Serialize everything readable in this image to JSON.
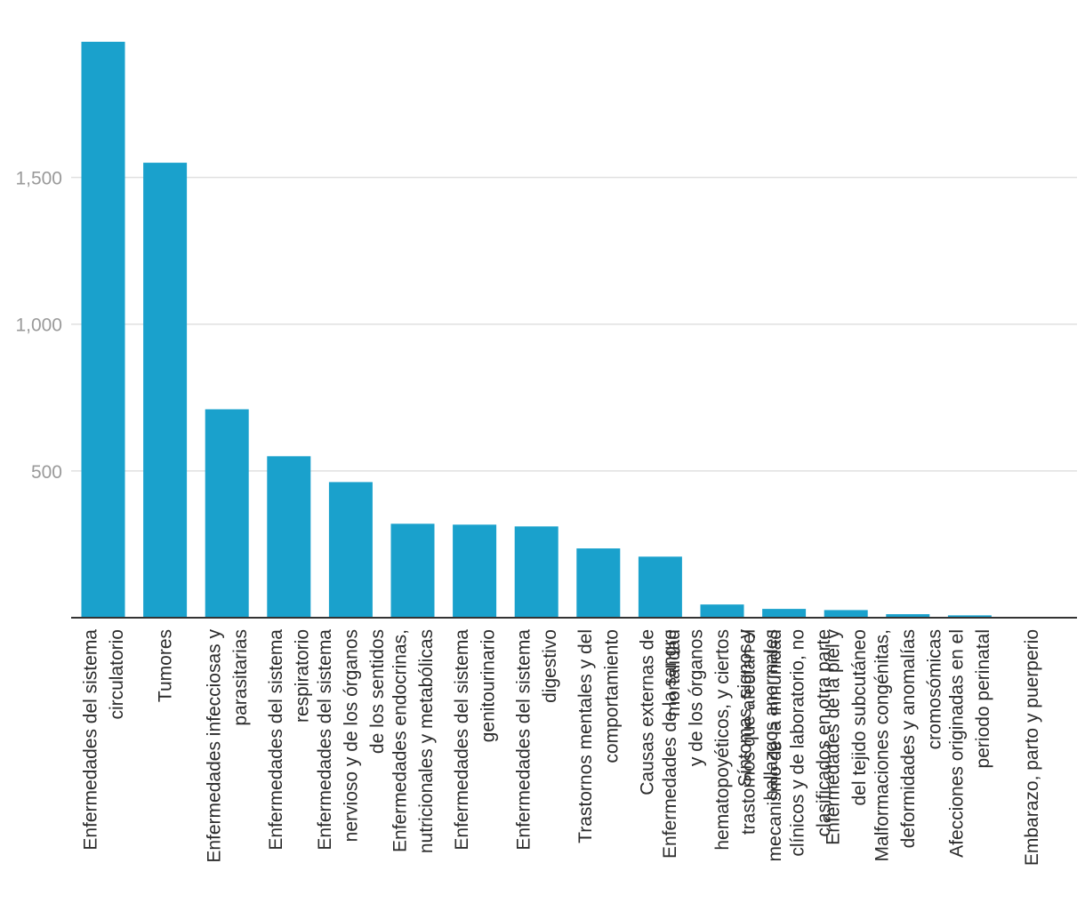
{
  "chart_data": {
    "type": "bar",
    "title": "",
    "xlabel": "",
    "ylabel": "",
    "ylim": [
      0,
      1962
    ],
    "yticks": [
      500,
      1000,
      1500
    ],
    "ytick_labels": [
      "500",
      "1,000",
      "1,500"
    ],
    "grid": true,
    "bar_color": "#1aa1cc",
    "categories": [
      [
        "Enfermedades del sistema",
        "circulatorio"
      ],
      [
        "Tumores"
      ],
      [
        "Enfermedades infecciosas y",
        "parasitarias"
      ],
      [
        "Enfermedades del sistema",
        "respiratorio"
      ],
      [
        "Enfermedades del sistema",
        "nervioso y de los órganos",
        "de los sentidos"
      ],
      [
        "Enfermedades endocrinas,",
        "nutricionales y metabólicas"
      ],
      [
        "Enfermedades del sistema",
        "genitourinario"
      ],
      [
        "Enfermedades del sistema",
        "digestivo"
      ],
      [
        "Trastornos mentales y del",
        "comportamiento"
      ],
      [
        "Causas externas de",
        "mortalidad"
      ],
      [
        "Enfermedades de la sangre",
        "y de los órganos",
        "hematopoyéticos, y ciertos",
        "trastornos que afectan el",
        "mecanismo de la inmunidad"
      ],
      [
        "Síntomas, signos y",
        "hallazgos anormales",
        "clínicos y de laboratorio, no",
        "clasificados en otra parte"
      ],
      [
        "Enfermedades de la piel y",
        "del tejido subcutáneo"
      ],
      [
        "Malformaciones congénitas,",
        "deformidades y anomalías",
        "cromosómicas"
      ],
      [
        "Afecciones originadas en el",
        "periodo perinatal"
      ],
      [
        "Embarazo, parto y puerperio"
      ]
    ],
    "values": [
      1962,
      1550,
      710,
      550,
      462,
      320,
      317,
      311,
      236,
      208,
      45,
      30,
      26,
      12,
      8,
      1
    ]
  }
}
